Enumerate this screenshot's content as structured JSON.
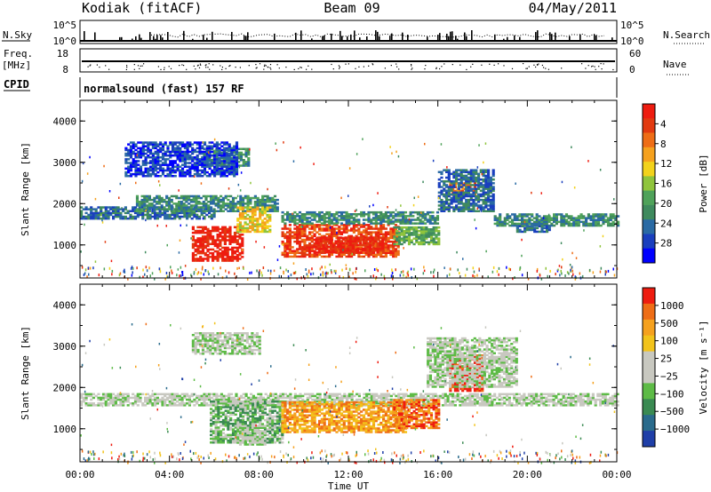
{
  "header": {
    "radar": "Kodiak (fitACF)",
    "beam": "Beam 09",
    "date": "04/May/2011"
  },
  "strip": {
    "nsky_label": "N.Sky",
    "nsearch_label": "N.Search",
    "count_ticks_left": [
      "10^5",
      "10^0"
    ],
    "count_ticks_right": [
      "10^5",
      "10^0"
    ],
    "freq_label_top": "Freq.",
    "freq_label_unit": "[MHz]",
    "freq_ticks": [
      "18",
      "8"
    ],
    "nave_label": "Nave",
    "nave_ticks": [
      "60",
      "0"
    ],
    "cpid_label": "CPID",
    "cpid_text": "normalsound (fast) 157 RF"
  },
  "chart_data": [
    {
      "type": "heatmap",
      "panel": "power",
      "title": "",
      "xlabel": "Time UT",
      "ylabel": "Slant Range [km]",
      "xlim": [
        "00:00",
        "24:00"
      ],
      "ylim": [
        200,
        4500
      ],
      "x_ticks": [
        "00:00",
        "04:00",
        "08:00",
        "12:00",
        "16:00",
        "20:00",
        "00:00"
      ],
      "y_ticks": [
        "1000",
        "2000",
        "3000",
        "4000"
      ],
      "colorbar": {
        "label": "Power [dB]",
        "ticks": [
          "4",
          "8",
          "12",
          "16",
          "20",
          "24",
          "28"
        ],
        "colors": [
          "#0000ff",
          "#1a3fbe",
          "#2a6aa4",
          "#3f8a5e",
          "#4fa25a",
          "#8fc43c",
          "#f2d21b",
          "#f5a11e",
          "#ee6d16",
          "#e23a10",
          "#ee1c10"
        ]
      },
      "regions": [
        {
          "t0": 0.0,
          "t1": 6.0,
          "r0": 1620,
          "r1": 1920,
          "level": 2
        },
        {
          "t0": 2.5,
          "t1": 8.8,
          "r0": 1800,
          "r1": 2200,
          "level": 3
        },
        {
          "t0": 5.0,
          "t1": 7.3,
          "r0": 600,
          "r1": 1450,
          "level": 10
        },
        {
          "t0": 7.0,
          "t1": 8.5,
          "r0": 1300,
          "r1": 1900,
          "level": 6
        },
        {
          "t0": 9.0,
          "t1": 14.2,
          "r0": 700,
          "r1": 1500,
          "level": 9
        },
        {
          "t0": 10.5,
          "t1": 13.5,
          "r0": 800,
          "r1": 1200,
          "level": 10
        },
        {
          "t0": 9.0,
          "t1": 16.0,
          "r0": 1500,
          "r1": 1800,
          "level": 3
        },
        {
          "t0": 14.0,
          "t1": 16.0,
          "r0": 1000,
          "r1": 1450,
          "level": 4
        },
        {
          "t0": 16.5,
          "t1": 17.7,
          "r0": 2200,
          "r1": 2500,
          "level": 8
        },
        {
          "t0": 16.0,
          "t1": 18.5,
          "r0": 1800,
          "r1": 2800,
          "level": 2
        },
        {
          "t0": 18.5,
          "t1": 24.0,
          "r0": 1450,
          "r1": 1750,
          "level": 3
        },
        {
          "t0": 19.5,
          "t1": 21.0,
          "r0": 1300,
          "r1": 1450,
          "level": 2
        },
        {
          "t0": 5.5,
          "t1": 7.5,
          "r0": 2900,
          "r1": 3350,
          "level": 3
        },
        {
          "t0": 2.0,
          "t1": 7.0,
          "r0": 2650,
          "r1": 3500,
          "level": 1
        }
      ]
    },
    {
      "type": "heatmap",
      "panel": "velocity",
      "title": "",
      "xlabel": "Time UT",
      "ylabel": "Slant Range [km]",
      "xlim": [
        "00:00",
        "24:00"
      ],
      "ylim": [
        200,
        4500
      ],
      "x_ticks": [
        "00:00",
        "04:00",
        "08:00",
        "12:00",
        "16:00",
        "20:00",
        "00:00"
      ],
      "y_ticks": [
        "1000",
        "2000",
        "3000",
        "4000"
      ],
      "colorbar": {
        "label": "Velocity [m s⁻¹]",
        "ticks": [
          "1000",
          "500",
          "100",
          "25",
          "−25",
          "−100",
          "−500",
          "−1000"
        ],
        "colors": [
          "#1f3fa8",
          "#2a6b8c",
          "#3a8a52",
          "#5dbb46",
          "#c8c8c0",
          "#c8c8c0",
          "#f2c31b",
          "#f5a11e",
          "#ee6d16",
          "#ee1c10"
        ]
      },
      "regions": [
        {
          "t0": 0.0,
          "t1": 24.0,
          "r0": 1550,
          "r1": 1850,
          "level": 4
        },
        {
          "t0": 5.8,
          "t1": 9.0,
          "r0": 650,
          "r1": 1650,
          "level": 3
        },
        {
          "t0": 9.0,
          "t1": 14.5,
          "r0": 900,
          "r1": 1650,
          "level": 7
        },
        {
          "t0": 7.0,
          "t1": 8.3,
          "r0": 600,
          "r1": 1100,
          "level": 4
        },
        {
          "t0": 14.0,
          "t1": 16.0,
          "r0": 1000,
          "r1": 1700,
          "level": 8
        },
        {
          "t0": 16.5,
          "t1": 18.0,
          "r0": 1900,
          "r1": 2800,
          "level": 9
        },
        {
          "t0": 15.5,
          "t1": 19.5,
          "r0": 2000,
          "r1": 3200,
          "level": 4
        },
        {
          "t0": 5.0,
          "t1": 8.0,
          "r0": 2800,
          "r1": 3300,
          "level": 4
        }
      ]
    }
  ]
}
